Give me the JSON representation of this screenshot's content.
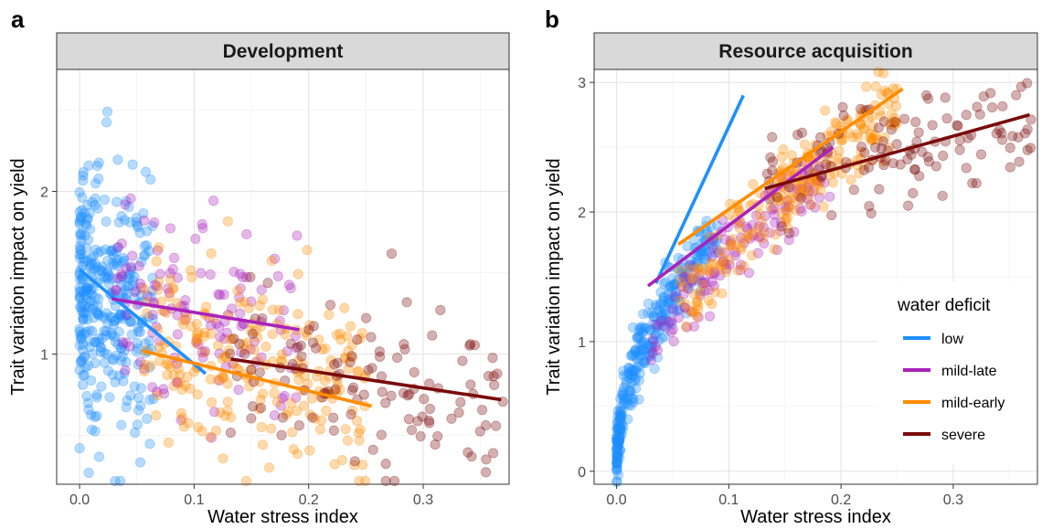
{
  "figure": {
    "legend": {
      "title": "water deficit",
      "items": [
        {
          "label": "low",
          "color": "#1E90FF"
        },
        {
          "label": "mild-late",
          "color": "#AA22BB"
        },
        {
          "label": "mild-early",
          "color": "#FF8C00"
        },
        {
          "label": "severe",
          "color": "#7A0A0A"
        }
      ]
    }
  },
  "chart_data": [
    {
      "panel_letter": "a",
      "type": "scatter",
      "title": "Development",
      "xlabel": "Water stress index",
      "ylabel": "Trait variation impact on yield",
      "xlim": [
        -0.02,
        0.375
      ],
      "ylim": [
        0.2,
        2.75
      ],
      "x_ticks": [
        0.0,
        0.1,
        0.2,
        0.3
      ],
      "x_tick_labels": [
        "0.0",
        "0.1",
        "0.2",
        "0.3"
      ],
      "y_ticks": [
        1,
        2
      ],
      "y_tick_labels": [
        "1",
        "2"
      ],
      "grid": true,
      "series": [
        {
          "name": "low",
          "color": "#1E90FF",
          "cloud": {
            "x_range": [
              0.0,
              0.065
            ],
            "y_center": 1.32,
            "y_spread": 0.38
          },
          "fit_line": [
            [
              0.0,
              1.52
            ],
            [
              0.11,
              0.88
            ]
          ]
        },
        {
          "name": "mild-late",
          "color": "#AA22BB",
          "cloud": {
            "x_range": [
              0.03,
              0.19
            ],
            "y_center": 1.25,
            "y_spread": 0.3
          },
          "fit_line": [
            [
              0.028,
              1.34
            ],
            [
              0.192,
              1.15
            ]
          ]
        },
        {
          "name": "mild-early",
          "color": "#FF8C00",
          "cloud": {
            "x_range": [
              0.055,
              0.25
            ],
            "y_center": 0.95,
            "y_spread": 0.3
          },
          "fit_line": [
            [
              0.055,
              1.02
            ],
            [
              0.255,
              0.68
            ]
          ]
        },
        {
          "name": "severe",
          "color": "#7A0A0A",
          "cloud": {
            "x_range": [
              0.13,
              0.37
            ],
            "y_center": 0.82,
            "y_spread": 0.26
          },
          "fit_line": [
            [
              0.132,
              0.97
            ],
            [
              0.368,
              0.72
            ]
          ]
        }
      ]
    },
    {
      "panel_letter": "b",
      "type": "scatter",
      "title": "Resource acquisition",
      "xlabel": "Water stress index",
      "ylabel": "Trait variation impact on yield",
      "xlim": [
        -0.02,
        0.375
      ],
      "ylim": [
        -0.1,
        3.1
      ],
      "x_ticks": [
        0.0,
        0.1,
        0.2,
        0.3
      ],
      "x_tick_labels": [
        "0.0",
        "0.1",
        "0.2",
        "0.3"
      ],
      "y_ticks": [
        0,
        1,
        2,
        3
      ],
      "y_tick_labels": [
        "0",
        "1",
        "2",
        "3"
      ],
      "grid": true,
      "series": [
        {
          "name": "low",
          "color": "#1E90FF",
          "cloud": {
            "shape": "sqrt",
            "x_range": [
              0.0,
              0.09
            ],
            "a": 0.0,
            "b": 6.2,
            "y_spread": 0.12
          },
          "fit_line": [
            [
              0.035,
              1.45
            ],
            [
              0.113,
              2.9
            ]
          ]
        },
        {
          "name": "mild-late",
          "color": "#AA22BB",
          "cloud": {
            "shape": "sqrt",
            "x_range": [
              0.03,
              0.19
            ],
            "a": 0.0,
            "b": 5.3,
            "y_spread": 0.15
          },
          "fit_line": [
            [
              0.028,
              1.43
            ],
            [
              0.193,
              2.5
            ]
          ]
        },
        {
          "name": "mild-early",
          "color": "#FF8C00",
          "cloud": {
            "shape": "sqrt",
            "x_range": [
              0.055,
              0.25
            ],
            "a": 0.0,
            "b": 5.6,
            "y_spread": 0.17
          },
          "fit_line": [
            [
              0.055,
              1.75
            ],
            [
              0.255,
              2.95
            ]
          ]
        },
        {
          "name": "severe",
          "color": "#7A0A0A",
          "cloud": {
            "shape": "linear",
            "x_range": [
              0.13,
              0.37
            ],
            "y_start": 2.2,
            "y_end": 2.7,
            "y_spread": 0.2
          },
          "fit_line": [
            [
              0.132,
              2.18
            ],
            [
              0.368,
              2.75
            ]
          ]
        }
      ]
    }
  ]
}
